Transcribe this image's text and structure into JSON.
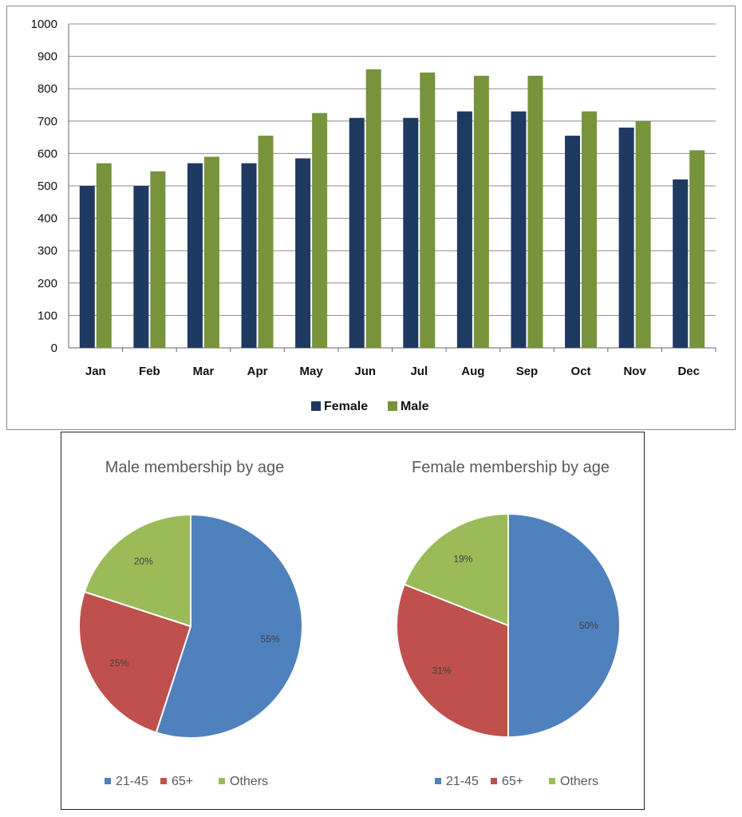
{
  "colors": {
    "female": "#1f3a60",
    "male": "#77933c",
    "grid": "#8c8c8c",
    "pie_21_45": "#4f81bd",
    "pie_65plus": "#c0504d",
    "pie_others": "#9bbb59"
  },
  "chart_data": [
    {
      "type": "bar",
      "title": "",
      "xlabel": "",
      "ylabel": "",
      "categories": [
        "Jan",
        "Feb",
        "Mar",
        "Apr",
        "May",
        "Jun",
        "Jul",
        "Aug",
        "Sep",
        "Oct",
        "Nov",
        "Dec"
      ],
      "series": [
        {
          "name": "Female",
          "values": [
            500,
            500,
            570,
            570,
            585,
            710,
            710,
            730,
            730,
            655,
            680,
            520
          ]
        },
        {
          "name": "Male",
          "values": [
            570,
            545,
            590,
            655,
            725,
            860,
            850,
            840,
            840,
            730,
            700,
            610
          ]
        }
      ],
      "ylim": [
        0,
        1000
      ],
      "yticks": [
        "0",
        "100",
        "200",
        "300",
        "400",
        "500",
        "600",
        "700",
        "800",
        "900",
        "1000"
      ],
      "grid": true,
      "legend_position": "bottom"
    },
    {
      "type": "pie",
      "title": "Male membership by age",
      "labels": [
        "21-45",
        "65+",
        "Others"
      ],
      "values": [
        55,
        25,
        20
      ],
      "value_labels": [
        "55%",
        "25%",
        "20%"
      ],
      "legend_position": "bottom"
    },
    {
      "type": "pie",
      "title": "Female membership by age",
      "labels": [
        "21-45",
        "65+",
        "Others"
      ],
      "values": [
        50,
        31,
        19
      ],
      "value_labels": [
        "50%",
        "31%",
        "19%"
      ],
      "legend_position": "bottom"
    }
  ]
}
